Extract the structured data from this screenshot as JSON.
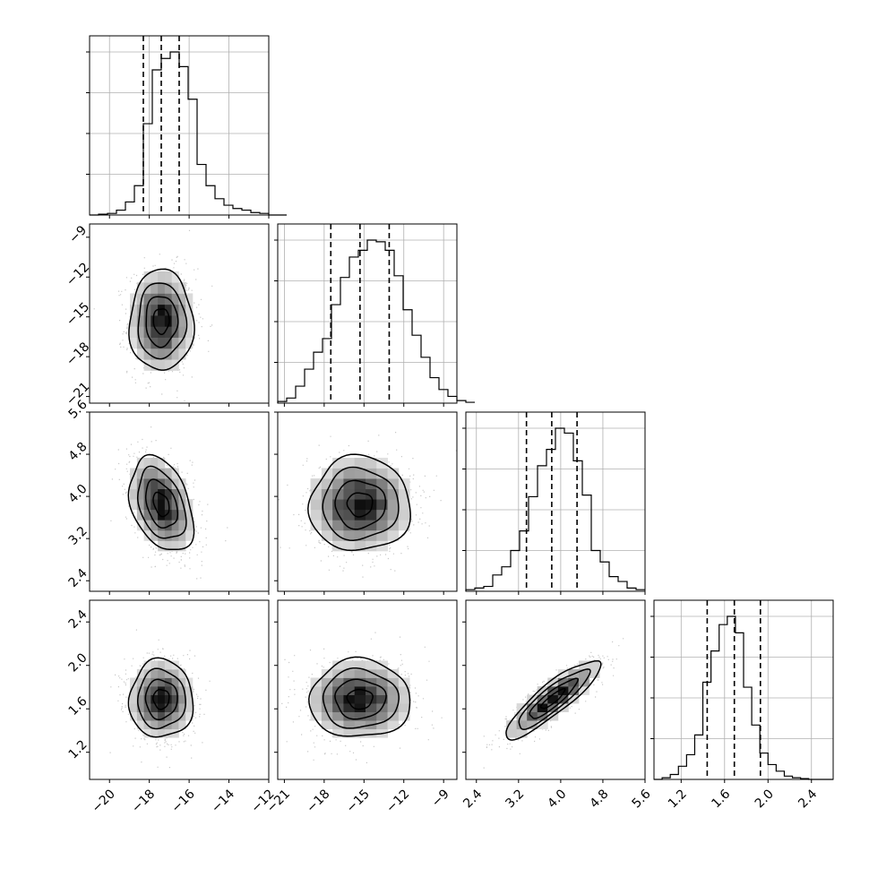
{
  "chart_data": {
    "type": "corner",
    "style": {
      "hist_color": "#000000",
      "quantile_line_color": "#000000",
      "grid_color": "#b0b0b0",
      "point_color": "#9a9a9a",
      "density_colormap": "greys"
    },
    "params": [
      {
        "range": [
          -21,
          -12
        ],
        "ticks": [
          -20,
          -18,
          -16,
          -14,
          -12
        ],
        "tick_labels": [
          "−20",
          "−18",
          "−16",
          "−14",
          "−12"
        ]
      },
      {
        "range": [
          -21.5,
          -8
        ],
        "ticks": [
          -21,
          -18,
          -15,
          -12,
          -9
        ],
        "tick_labels": [
          "−21",
          "−18",
          "−15",
          "−12",
          "−9"
        ]
      },
      {
        "range": [
          2.2,
          5.6
        ],
        "ticks": [
          2.4,
          3.2,
          4.0,
          4.8,
          5.6
        ],
        "tick_labels": [
          "2.4",
          "3.2",
          "4.0",
          "4.8",
          "5.6"
        ]
      },
      {
        "range": [
          0.95,
          2.6
        ],
        "ticks": [
          1.2,
          1.6,
          2.0,
          2.4
        ],
        "tick_labels": [
          "1.2",
          "1.6",
          "2.0",
          "2.4"
        ]
      }
    ],
    "histograms": [
      {
        "quantiles": [
          -18.3,
          -17.4,
          -16.5
        ],
        "bin_start": -21,
        "bin_width": 0.45,
        "counts": [
          0,
          0.5,
          1,
          3,
          8,
          18,
          56,
          89,
          96,
          100,
          91,
          71,
          31,
          18,
          10,
          6,
          4,
          3,
          1.5,
          1,
          0,
          0
        ]
      },
      {
        "quantiles": [
          -17.5,
          -15.3,
          -13.1
        ],
        "bin_start": -21.5,
        "bin_width": 0.675,
        "counts": [
          1,
          3,
          10,
          20,
          30,
          38,
          58,
          74,
          86,
          90,
          96,
          95,
          90,
          75,
          55,
          40,
          27,
          15,
          8,
          4,
          1.5,
          0.5
        ]
      },
      {
        "quantiles": [
          3.35,
          3.83,
          4.31
        ],
        "bin_start": 2.2,
        "bin_width": 0.17,
        "counts": [
          1,
          2,
          3,
          10,
          15,
          25,
          37,
          58,
          77,
          87,
          100,
          97,
          80,
          59,
          25,
          18,
          9,
          6,
          2,
          1
        ]
      },
      {
        "quantiles": [
          1.44,
          1.69,
          1.93
        ],
        "bin_start": 0.95,
        "bin_width": 0.075,
        "counts": [
          0,
          1,
          3,
          8,
          15,
          27,
          59,
          78,
          94,
          99,
          89,
          56,
          33,
          16,
          9,
          5,
          2,
          1,
          0.5,
          0,
          0,
          0
        ]
      }
    ],
    "pairs": [
      {
        "row": 1,
        "col": 0,
        "mean": [
          -17.4,
          -15.3
        ],
        "sd": [
          0.8,
          1.9
        ],
        "rho": 0.0
      },
      {
        "row": 2,
        "col": 0,
        "mean": [
          -17.4,
          3.85
        ],
        "sd": [
          0.8,
          0.45
        ],
        "rho": -0.35
      },
      {
        "row": 2,
        "col": 1,
        "mean": [
          -15.3,
          3.85
        ],
        "sd": [
          1.9,
          0.45
        ],
        "rho": 0.0
      },
      {
        "row": 3,
        "col": 0,
        "mean": [
          -17.4,
          1.69
        ],
        "sd": [
          0.8,
          0.18
        ],
        "rho": 0.0
      },
      {
        "row": 3,
        "col": 1,
        "mean": [
          -15.3,
          1.69
        ],
        "sd": [
          1.9,
          0.18
        ],
        "rho": 0.0
      },
      {
        "row": 3,
        "col": 2,
        "mean": [
          3.85,
          1.69
        ],
        "sd": [
          0.45,
          0.18
        ],
        "rho": 0.88
      }
    ],
    "contour_levels": [
      0.5,
      1.0,
      1.5,
      2.0
    ],
    "grid": true
  }
}
